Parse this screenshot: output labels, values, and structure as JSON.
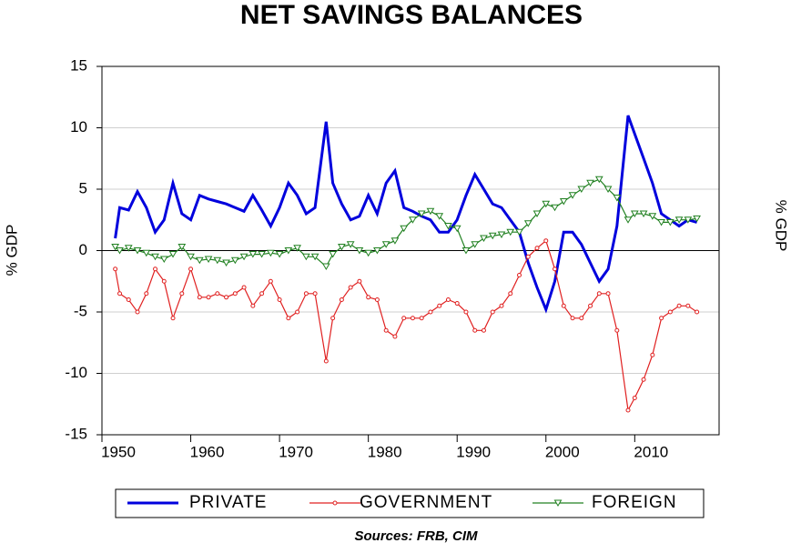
{
  "chart_data": {
    "type": "line",
    "title": "NET SAVINGS BALANCES",
    "y_label": "% GDP",
    "y2_label": "% GDP",
    "source": "Sources:  FRB, CIM",
    "x": [
      1951.5,
      1952,
      1953,
      1954,
      1955,
      1956,
      1957,
      1958,
      1959,
      1960,
      1961,
      1962,
      1963,
      1964,
      1965,
      1966,
      1967,
      1968,
      1969,
      1970,
      1971,
      1972,
      1973,
      1974,
      1975.25,
      1976,
      1977,
      1978,
      1979,
      1980,
      1981,
      1982,
      1983,
      1984,
      1985,
      1986,
      1987,
      1988,
      1989,
      1990,
      1991,
      1992,
      1993,
      1994,
      1995,
      1996,
      1997,
      1998,
      1999,
      2000,
      2001,
      2002,
      2003,
      2004,
      2005,
      2006,
      2007,
      2008,
      2009.25,
      2010,
      2011,
      2012,
      2013,
      2014,
      2015,
      2016,
      2017
    ],
    "series": [
      {
        "name": "PRIVATE",
        "color": "#0000dd",
        "marker": "none",
        "values": [
          1.0,
          3.5,
          3.3,
          4.8,
          3.5,
          1.5,
          2.5,
          5.5,
          3,
          2.5,
          4.5,
          4.2,
          4,
          3.8,
          3.5,
          3.2,
          4.5,
          3.3,
          2,
          3.5,
          5.5,
          4.5,
          3,
          3.5,
          10.5,
          5.5,
          3.8,
          2.5,
          2.8,
          4.5,
          3,
          5.5,
          6.5,
          3.5,
          3.2,
          2.8,
          2.5,
          1.5,
          1.5,
          2.5,
          4.5,
          6.2,
          5,
          3.8,
          3.5,
          2.5,
          1.5,
          -1,
          -3,
          -4.8,
          -2.5,
          1.5,
          1.5,
          0.5,
          -1,
          -2.5,
          -1.5,
          2,
          11,
          9.5,
          7.5,
          5.5,
          3,
          2.5,
          2,
          2.5,
          2.3
        ]
      },
      {
        "name": "GOVERNMENT",
        "color": "#e02020",
        "marker": "circle",
        "values": [
          -1.5,
          -3.5,
          -4,
          -5,
          -3.5,
          -1.5,
          -2.5,
          -5.5,
          -3.5,
          -1.5,
          -3.8,
          -3.8,
          -3.5,
          -3.8,
          -3.5,
          -3,
          -4.5,
          -3.5,
          -2.5,
          -4,
          -5.5,
          -5,
          -3.5,
          -3.5,
          -9,
          -5.5,
          -4,
          -3,
          -2.5,
          -3.8,
          -4,
          -6.5,
          -7,
          -5.5,
          -5.5,
          -5.5,
          -5,
          -4.5,
          -4,
          -4.3,
          -5,
          -6.5,
          -6.5,
          -5,
          -4.5,
          -3.5,
          -2,
          -0.5,
          0.2,
          0.8,
          -1.5,
          -4.5,
          -5.5,
          -5.5,
          -4.5,
          -3.5,
          -3.5,
          -6.5,
          -13,
          -12,
          -10.5,
          -8.5,
          -5.5,
          -5,
          -4.5,
          -4.5,
          -5
        ]
      },
      {
        "name": "FOREIGN",
        "color": "#208020",
        "marker": "triangle",
        "values": [
          0.3,
          0,
          0.2,
          0,
          -0.2,
          -0.5,
          -0.7,
          -0.3,
          0.3,
          -0.5,
          -0.8,
          -0.7,
          -0.8,
          -1,
          -0.8,
          -0.5,
          -0.3,
          -0.3,
          -0.2,
          -0.3,
          0,
          0.2,
          -0.5,
          -0.5,
          -1.3,
          -0.3,
          0.3,
          0.5,
          0,
          -0.2,
          0,
          0.5,
          0.8,
          1.8,
          2.5,
          3,
          3.2,
          2.8,
          2,
          1.8,
          0,
          0.5,
          1,
          1.2,
          1.3,
          1.5,
          1.5,
          2.2,
          3,
          3.8,
          3.5,
          4,
          4.5,
          5,
          5.5,
          5.8,
          5,
          4.3,
          2.5,
          3,
          3,
          2.8,
          2.3,
          2.3,
          2.5,
          2.5,
          2.6
        ]
      }
    ],
    "xlim": [
      1950,
      2019.5
    ],
    "xticks": [
      1950,
      1960,
      1970,
      1980,
      1990,
      2000,
      2010
    ],
    "ylim": [
      -15,
      15
    ],
    "yticks": [
      -15,
      -10,
      -5,
      0,
      5,
      10,
      15
    ],
    "grid": true,
    "legend": "bottom"
  }
}
